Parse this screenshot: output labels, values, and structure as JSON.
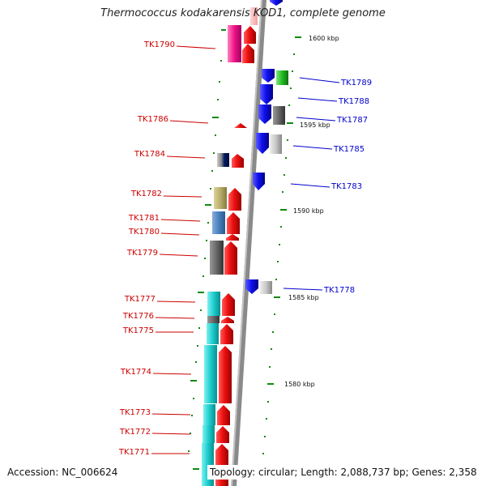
{
  "title": "Thermococcus kodakarensis KOD1, complete genome",
  "accession_label": "Accession: NC_006624",
  "topology_label": "Topology: circular; Length: 2,088,737 bp; Genes: 2,358",
  "colors": {
    "left_gene_label": "#cc0000",
    "right_gene_label": "#0000cc",
    "forward_arrow": "#ee1111",
    "reverse_arrow": "#1111ee",
    "axis": "#888888",
    "tick": "#118811"
  },
  "kbp_labels": [
    {
      "text": "1600 kbp"
    },
    {
      "text": "1595 kbp"
    },
    {
      "text": "1590 kbp"
    },
    {
      "text": "1585 kbp"
    },
    {
      "text": "1580 kbp"
    }
  ],
  "left_genes": [
    {
      "label": "TK1790"
    },
    {
      "label": "TK1786"
    },
    {
      "label": "TK1784"
    },
    {
      "label": "TK1782"
    },
    {
      "label": "TK1781"
    },
    {
      "label": "TK1780"
    },
    {
      "label": "TK1779"
    },
    {
      "label": "TK1777"
    },
    {
      "label": "TK1776"
    },
    {
      "label": "TK1775"
    },
    {
      "label": "TK1774"
    },
    {
      "label": "TK1773"
    },
    {
      "label": "TK1772"
    },
    {
      "label": "TK1771"
    }
  ],
  "right_genes": [
    {
      "label": "TK1789"
    },
    {
      "label": "TK1788"
    },
    {
      "label": "TK1787"
    },
    {
      "label": "TK1785"
    },
    {
      "label": "TK1783"
    },
    {
      "label": "TK1778"
    }
  ]
}
